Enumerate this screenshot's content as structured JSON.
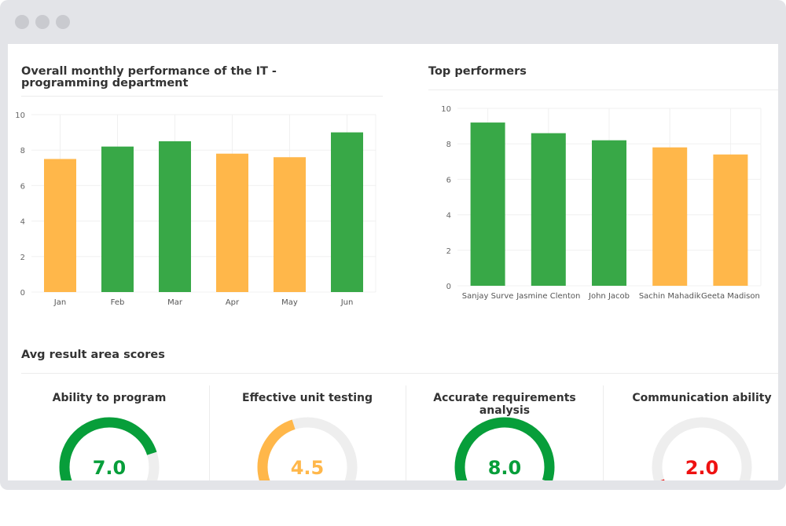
{
  "window": {
    "controls": [
      "close",
      "minimize",
      "maximize"
    ]
  },
  "colors": {
    "green": "#38a847",
    "orange": "#ffb74a",
    "red": "#ee1111",
    "ring": "#eeeeee",
    "gauge_green": "#079e3a"
  },
  "charts": {
    "monthly_title": "Overall monthly performance of the IT - programming department",
    "top_title": "Top performers"
  },
  "chart_data": [
    {
      "type": "bar",
      "title": "Overall monthly performance of the IT - programming department",
      "categories": [
        "Jan",
        "Feb",
        "Mar",
        "Apr",
        "May",
        "Jun"
      ],
      "values": [
        7.5,
        8.2,
        8.5,
        7.8,
        7.6,
        9.0
      ],
      "bar_colors": [
        "orange",
        "green",
        "green",
        "orange",
        "orange",
        "green"
      ],
      "ylim": [
        0,
        10
      ],
      "yticks": [
        0,
        2,
        4,
        6,
        8,
        10
      ],
      "grid": true
    },
    {
      "type": "bar",
      "title": "Top performers",
      "categories": [
        "Sanjay Surve",
        "Jasmine Clenton",
        "John Jacob",
        "Sachin Mahadik",
        "Geeta Madison"
      ],
      "values": [
        9.2,
        8.6,
        8.2,
        7.8,
        7.4
      ],
      "bar_colors": [
        "green",
        "green",
        "green",
        "orange",
        "orange"
      ],
      "ylim": [
        0,
        10
      ],
      "yticks": [
        0,
        2,
        4,
        6,
        8,
        10
      ],
      "grid": true
    }
  ],
  "scores": {
    "title": "Avg result area scores",
    "max": 10,
    "items": [
      {
        "label": "Ability to program",
        "value": "7.0",
        "color": "gauge_green"
      },
      {
        "label": "Effective unit testing",
        "value": "4.5",
        "color": "orange"
      },
      {
        "label": "Accurate requirements analysis",
        "value": "8.0",
        "color": "gauge_green"
      },
      {
        "label": "Communication ability",
        "value": "2.0",
        "color": "red"
      }
    ]
  }
}
